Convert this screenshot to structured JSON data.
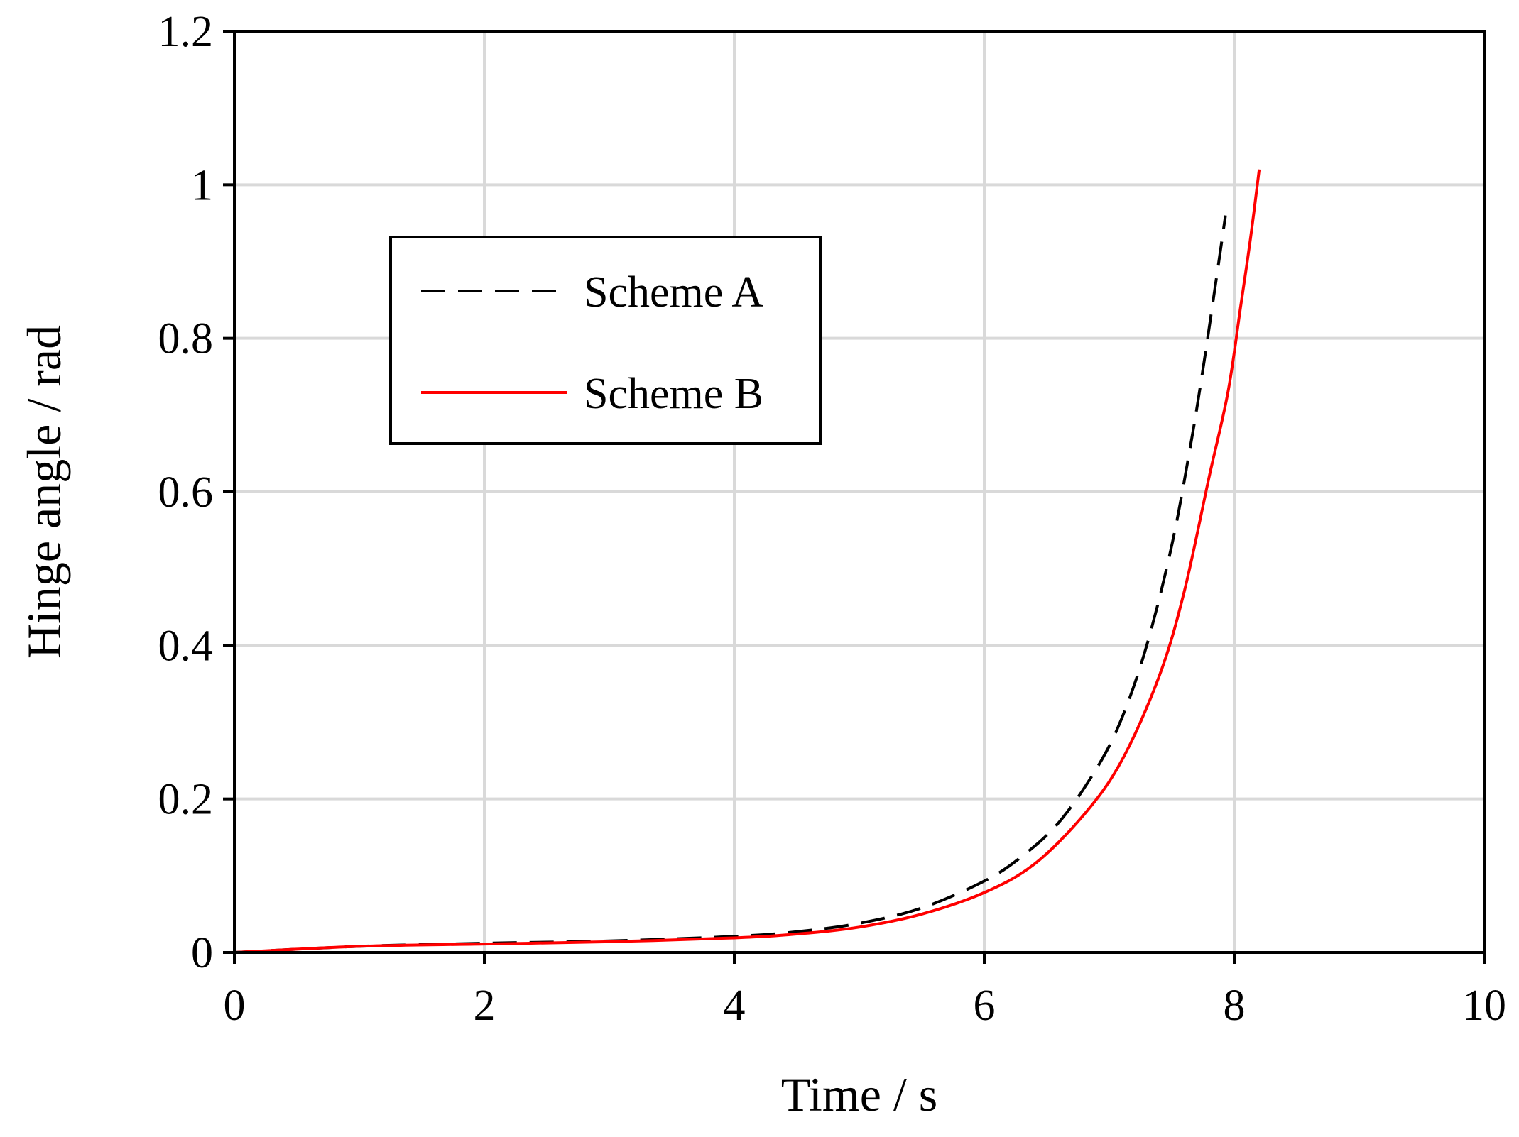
{
  "chart_data": {
    "type": "line",
    "xlabel": "Time / s",
    "ylabel": "Hinge angle / rad",
    "xlim": [
      0,
      10
    ],
    "ylim": [
      0,
      1.2
    ],
    "x_ticks": [
      "0",
      "2",
      "4",
      "6",
      "8",
      "10"
    ],
    "y_ticks": [
      "0",
      "0.2",
      "0.4",
      "0.6",
      "0.8",
      "1",
      "1.2"
    ],
    "grid": true,
    "legend_position": "upper-left",
    "series": [
      {
        "name": "Scheme A",
        "color": "#000000",
        "style": "dashed",
        "points": [
          [
            0,
            0.0
          ],
          [
            1,
            0.008
          ],
          [
            2,
            0.012
          ],
          [
            3,
            0.015
          ],
          [
            4,
            0.021
          ],
          [
            4.5,
            0.027
          ],
          [
            5,
            0.038
          ],
          [
            5.5,
            0.058
          ],
          [
            6,
            0.093
          ],
          [
            6.3,
            0.125
          ],
          [
            6.6,
            0.17
          ],
          [
            6.9,
            0.24
          ],
          [
            7.1,
            0.305
          ],
          [
            7.3,
            0.4
          ],
          [
            7.5,
            0.53
          ],
          [
            7.65,
            0.66
          ],
          [
            7.75,
            0.76
          ],
          [
            7.85,
            0.87
          ],
          [
            7.93,
            0.96
          ]
        ]
      },
      {
        "name": "Scheme B",
        "color": "#ff0000",
        "style": "solid",
        "points": [
          [
            0,
            0.0
          ],
          [
            1,
            0.008
          ],
          [
            2,
            0.011
          ],
          [
            3,
            0.014
          ],
          [
            4,
            0.019
          ],
          [
            4.5,
            0.024
          ],
          [
            5,
            0.033
          ],
          [
            5.5,
            0.05
          ],
          [
            6,
            0.078
          ],
          [
            6.4,
            0.115
          ],
          [
            6.8,
            0.18
          ],
          [
            7.1,
            0.25
          ],
          [
            7.4,
            0.36
          ],
          [
            7.6,
            0.47
          ],
          [
            7.8,
            0.62
          ],
          [
            7.95,
            0.73
          ],
          [
            8.05,
            0.84
          ],
          [
            8.13,
            0.93
          ],
          [
            8.2,
            1.02
          ]
        ]
      }
    ]
  }
}
